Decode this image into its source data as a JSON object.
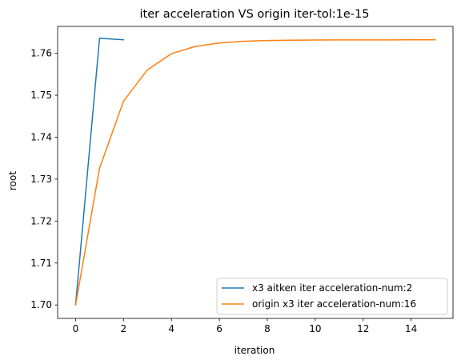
{
  "chart_data": {
    "type": "line",
    "title": "iter acceleration VS origin iter-tol:1e-15",
    "xlabel": "iteration",
    "ylabel": "root",
    "xlim": [
      -0.75,
      15.75
    ],
    "ylim": [
      1.6968,
      1.7664
    ],
    "xticks": [
      0,
      2,
      4,
      6,
      8,
      10,
      12,
      14
    ],
    "yticks": [
      1.7,
      1.71,
      1.72,
      1.73,
      1.74,
      1.75,
      1.76
    ],
    "ytick_labels": [
      "1.70",
      "1.71",
      "1.72",
      "1.73",
      "1.74",
      "1.75",
      "1.76"
    ],
    "grid": false,
    "legend_position": "lower-right",
    "series": [
      {
        "name": "x3 aitken iter acceleration-num:2",
        "color": "#1f77b4",
        "x": [
          0,
          1,
          2
        ],
        "y": [
          1.7,
          1.76357,
          1.76322
        ]
      },
      {
        "name": "origin x3 iter acceleration-num:16",
        "color": "#ff7f0e",
        "x": [
          0,
          1,
          2,
          3,
          4,
          5,
          6,
          7,
          8,
          9,
          10,
          11,
          12,
          13,
          14,
          15
        ],
        "y": [
          1.7,
          1.73262,
          1.74858,
          1.75606,
          1.7599,
          1.76163,
          1.76245,
          1.76285,
          1.76303,
          1.76311,
          1.76316,
          1.76318,
          1.76319,
          1.76319,
          1.7632,
          1.7632
        ]
      }
    ]
  }
}
